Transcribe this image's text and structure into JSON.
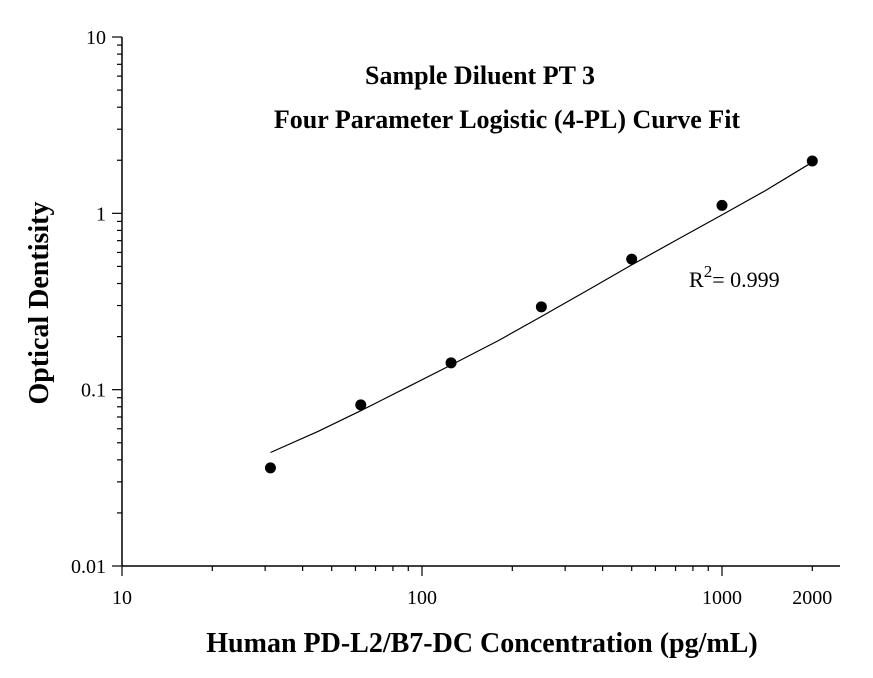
{
  "chart_data": {
    "type": "scatter",
    "title_line1": "Sample Diluent PT 3",
    "title_line2": "Four Parameter Logistic (4-PL) Curve Fit",
    "xlabel": "Human PD-L2/B7-DC Concentration (pg/mL)",
    "ylabel": "Optical Dentisity",
    "x_scale": "log",
    "y_scale": "log",
    "xlim": [
      10,
      2400
    ],
    "ylim": [
      0.01,
      10
    ],
    "x_ticks": [
      {
        "value": 10,
        "label": "10"
      },
      {
        "value": 100,
        "label": "100"
      },
      {
        "value": 1000,
        "label": "1000"
      },
      {
        "value": 2000,
        "label": "2000"
      }
    ],
    "y_ticks": [
      {
        "value": 0.01,
        "label": "0.01"
      },
      {
        "value": 0.1,
        "label": "0.1"
      },
      {
        "value": 1,
        "label": "1"
      },
      {
        "value": 10,
        "label": "10"
      }
    ],
    "series": [
      {
        "x": [
          31.25,
          62.5,
          125,
          250,
          500,
          1000,
          2000
        ],
        "y": [
          0.036,
          0.082,
          0.142,
          0.295,
          0.55,
          1.11,
          1.98
        ]
      }
    ],
    "fit_curve": {
      "x": [
        31.25,
        45,
        62.5,
        90,
        125,
        180,
        250,
        360,
        500,
        720,
        1000,
        1400,
        2000
      ],
      "y": [
        0.044,
        0.058,
        0.076,
        0.104,
        0.138,
        0.19,
        0.26,
        0.37,
        0.51,
        0.72,
        0.98,
        1.35,
        1.95
      ]
    },
    "r_squared": {
      "base": "R",
      "exp": "2",
      "value": "= 0.999"
    },
    "grid": false,
    "legend": "none"
  }
}
